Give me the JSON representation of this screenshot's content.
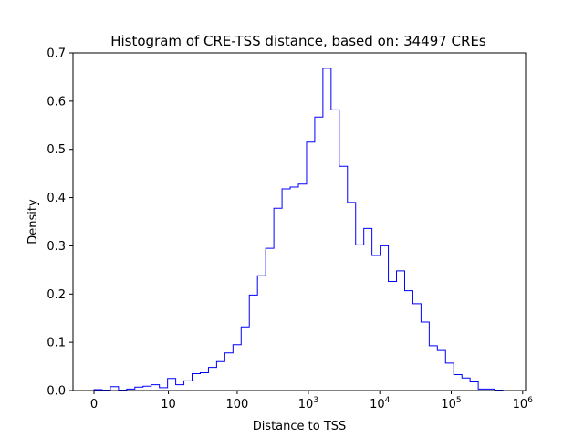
{
  "chart_data": {
    "type": "histogram",
    "title": "Histogram of CRE-TSS distance, based on: 34497 CREs",
    "xlabel": "Distance to TSS",
    "ylabel": "Density",
    "x_scale": "symlog",
    "x_ticks": [
      {
        "value": 0,
        "label": "0"
      },
      {
        "value": 10,
        "label": "10"
      },
      {
        "value": 100,
        "label": "100"
      },
      {
        "value": 1000,
        "label": "10",
        "exp": "3"
      },
      {
        "value": 10000,
        "label": "10",
        "exp": "4"
      },
      {
        "value": 100000,
        "label": "10",
        "exp": "5"
      },
      {
        "value": 1000000,
        "label": "10",
        "exp": "6"
      }
    ],
    "ylim": [
      0,
      0.7
    ],
    "y_ticks": [
      {
        "value": 0.0,
        "label": "0.0"
      },
      {
        "value": 0.1,
        "label": "0.1"
      },
      {
        "value": 0.2,
        "label": "0.2"
      },
      {
        "value": 0.3,
        "label": "0.3"
      },
      {
        "value": 0.4,
        "label": "0.4"
      },
      {
        "value": 0.5,
        "label": "0.5"
      },
      {
        "value": 0.6,
        "label": "0.6"
      },
      {
        "value": 0.7,
        "label": "0.7"
      }
    ],
    "grid": false,
    "color": "#0000ff",
    "densities": [
      0.002,
      0.001,
      0.008,
      0.001,
      0.003,
      0.007,
      0.009,
      0.012,
      0.006,
      0.025,
      0.012,
      0.02,
      0.035,
      0.037,
      0.048,
      0.06,
      0.078,
      0.095,
      0.132,
      0.198,
      0.238,
      0.295,
      0.378,
      0.418,
      0.422,
      0.428,
      0.515,
      0.567,
      0.668,
      0.582,
      0.465,
      0.39,
      0.302,
      0.336,
      0.28,
      0.3,
      0.226,
      0.248,
      0.207,
      0.18,
      0.142,
      0.093,
      0.083,
      0.057,
      0.033,
      0.026,
      0.018,
      0.003,
      0.003,
      0.001
    ]
  }
}
